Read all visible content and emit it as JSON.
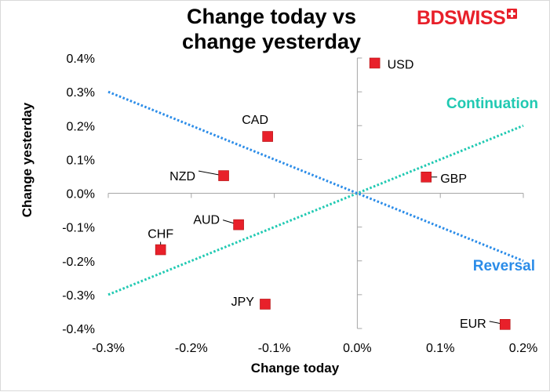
{
  "header": {
    "title_line1": "Change today vs",
    "title_line2": "change yesterday",
    "logo_text": "BDSWISS"
  },
  "colors": {
    "marker": "#e8202a",
    "continuation": "#20c9b2",
    "reversal": "#2b8ce8",
    "logo": "#e8202a"
  },
  "chart_data": {
    "type": "scatter",
    "title": "Change today vs change yesterday",
    "xlabel": "Change today",
    "ylabel": "Change yesterday",
    "xlim": [
      -0.3,
      0.2
    ],
    "ylim": [
      -0.4,
      0.4
    ],
    "x_ticks": [
      -0.3,
      -0.2,
      -0.1,
      0.0,
      0.1,
      0.2
    ],
    "x_tick_labels": [
      "-0.3%",
      "-0.2%",
      "-0.1%",
      "0.0%",
      "0.1%",
      "0.2%"
    ],
    "y_ticks": [
      0.4,
      0.3,
      0.2,
      0.1,
      0.0,
      -0.1,
      -0.2,
      -0.3,
      -0.4
    ],
    "y_tick_labels": [
      "0.4%",
      "0.3%",
      "0.2%",
      "0.1%",
      "0.0%",
      "-0.1%",
      "-0.2%",
      "-0.3%",
      "-0.4%"
    ],
    "points": [
      {
        "label": "USD",
        "x": 0.021,
        "y": 0.385
      },
      {
        "label": "CAD",
        "x": -0.108,
        "y": 0.168
      },
      {
        "label": "NZD",
        "x": -0.161,
        "y": 0.052
      },
      {
        "label": "GBP",
        "x": 0.083,
        "y": 0.048
      },
      {
        "label": "AUD",
        "x": -0.143,
        "y": -0.093
      },
      {
        "label": "CHF",
        "x": -0.237,
        "y": -0.167
      },
      {
        "label": "JPY",
        "x": -0.111,
        "y": -0.328
      },
      {
        "label": "EUR",
        "x": 0.178,
        "y": -0.388
      }
    ],
    "lines": [
      {
        "name": "Continuation",
        "x": [
          -0.3,
          0.2
        ],
        "y": [
          -0.3,
          0.2
        ]
      },
      {
        "name": "Reversal",
        "x": [
          -0.3,
          0.2
        ],
        "y": [
          0.3,
          -0.2
        ]
      }
    ],
    "annotations": [
      "Continuation",
      "Reversal"
    ]
  }
}
